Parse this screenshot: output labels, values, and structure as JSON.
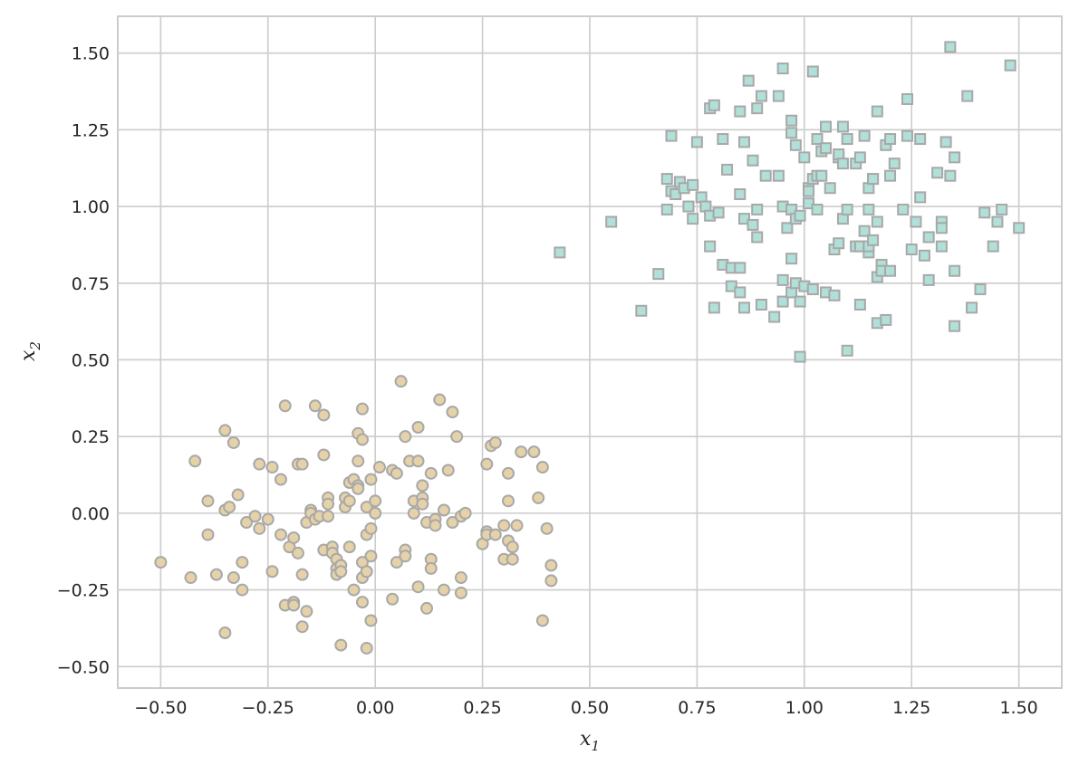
{
  "chart_data": {
    "type": "scatter",
    "xlabel": "x",
    "xlabel_sub": "1",
    "ylabel": "x",
    "ylabel_sub": "2",
    "xlim": [
      -0.6,
      1.6
    ],
    "ylim": [
      -0.57,
      1.62
    ],
    "grid": true,
    "x_ticks": [
      -0.5,
      -0.25,
      0.0,
      0.25,
      0.5,
      0.75,
      1.0,
      1.25,
      1.5
    ],
    "x_tick_labels": [
      "−0.50",
      "−0.25",
      "0.00",
      "0.25",
      "0.50",
      "0.75",
      "1.00",
      "1.25",
      "1.50"
    ],
    "y_ticks": [
      -0.5,
      -0.25,
      0.0,
      0.25,
      0.5,
      0.75,
      1.0,
      1.25,
      1.5
    ],
    "y_tick_labels": [
      "−0.50",
      "−0.25",
      "0.00",
      "0.25",
      "0.50",
      "0.75",
      "1.00",
      "1.25",
      "1.50"
    ],
    "colors": {
      "circle_fill": "#e6d2a8",
      "square_fill": "#b0e0d8",
      "marker_edge": "#a8a8a8",
      "grid": "#cccccc",
      "spine": "#cccccc",
      "text": "#262626"
    },
    "series": [
      {
        "marker": "circle",
        "points": [
          [
            -0.5,
            -0.16
          ],
          [
            -0.43,
            -0.21
          ],
          [
            -0.42,
            0.17
          ],
          [
            -0.39,
            0.04
          ],
          [
            -0.39,
            -0.07
          ],
          [
            -0.37,
            -0.2
          ],
          [
            -0.35,
            0.27
          ],
          [
            -0.35,
            0.01
          ],
          [
            -0.35,
            -0.39
          ],
          [
            -0.34,
            0.02
          ],
          [
            -0.33,
            0.23
          ],
          [
            -0.33,
            -0.21
          ],
          [
            -0.32,
            0.06
          ],
          [
            -0.31,
            -0.16
          ],
          [
            -0.31,
            -0.25
          ],
          [
            -0.3,
            -0.03
          ],
          [
            -0.28,
            -0.01
          ],
          [
            -0.27,
            0.16
          ],
          [
            -0.27,
            -0.05
          ],
          [
            -0.25,
            -0.02
          ],
          [
            -0.24,
            0.15
          ],
          [
            -0.24,
            -0.19
          ],
          [
            -0.22,
            0.11
          ],
          [
            -0.22,
            -0.07
          ],
          [
            -0.21,
            0.35
          ],
          [
            -0.21,
            -0.3
          ],
          [
            -0.2,
            -0.11
          ],
          [
            -0.19,
            -0.08
          ],
          [
            -0.19,
            -0.29
          ],
          [
            -0.19,
            -0.3
          ],
          [
            -0.18,
            0.16
          ],
          [
            -0.18,
            -0.13
          ],
          [
            -0.17,
            0.16
          ],
          [
            -0.17,
            -0.2
          ],
          [
            -0.17,
            -0.37
          ],
          [
            -0.16,
            -0.03
          ],
          [
            -0.16,
            -0.32
          ],
          [
            -0.15,
            0.01
          ],
          [
            -0.15,
            0.0
          ],
          [
            -0.14,
            -0.02
          ],
          [
            -0.14,
            0.35
          ],
          [
            -0.13,
            -0.01
          ],
          [
            -0.12,
            0.19
          ],
          [
            -0.12,
            0.32
          ],
          [
            -0.12,
            -0.12
          ],
          [
            -0.11,
            0.05
          ],
          [
            -0.11,
            -0.01
          ],
          [
            -0.11,
            0.03
          ],
          [
            -0.1,
            -0.11
          ],
          [
            -0.1,
            -0.13
          ],
          [
            -0.09,
            -0.15
          ],
          [
            -0.09,
            -0.18
          ],
          [
            -0.09,
            -0.2
          ],
          [
            -0.08,
            -0.43
          ],
          [
            -0.08,
            -0.17
          ],
          [
            -0.08,
            -0.19
          ],
          [
            -0.07,
            0.05
          ],
          [
            -0.07,
            0.02
          ],
          [
            -0.06,
            0.04
          ],
          [
            -0.06,
            0.1
          ],
          [
            -0.06,
            -0.11
          ],
          [
            -0.05,
            0.11
          ],
          [
            -0.05,
            -0.25
          ],
          [
            -0.04,
            0.09
          ],
          [
            -0.04,
            0.08
          ],
          [
            -0.04,
            0.17
          ],
          [
            -0.04,
            0.26
          ],
          [
            -0.03,
            0.24
          ],
          [
            -0.03,
            0.34
          ],
          [
            -0.03,
            -0.16
          ],
          [
            -0.03,
            -0.21
          ],
          [
            -0.03,
            -0.29
          ],
          [
            -0.02,
            0.02
          ],
          [
            -0.02,
            -0.07
          ],
          [
            -0.02,
            -0.19
          ],
          [
            -0.02,
            -0.44
          ],
          [
            -0.01,
            0.11
          ],
          [
            -0.01,
            -0.05
          ],
          [
            -0.01,
            -0.14
          ],
          [
            -0.01,
            -0.35
          ],
          [
            0.0,
            0.0
          ],
          [
            0.0,
            0.04
          ],
          [
            0.01,
            0.15
          ],
          [
            0.04,
            0.14
          ],
          [
            0.04,
            -0.28
          ],
          [
            0.05,
            0.13
          ],
          [
            0.05,
            -0.16
          ],
          [
            0.06,
            0.43
          ],
          [
            0.07,
            0.25
          ],
          [
            0.07,
            -0.12
          ],
          [
            0.07,
            -0.14
          ],
          [
            0.08,
            0.17
          ],
          [
            0.09,
            0.04
          ],
          [
            0.09,
            0.0
          ],
          [
            0.1,
            0.17
          ],
          [
            0.1,
            -0.24
          ],
          [
            0.1,
            0.28
          ],
          [
            0.11,
            0.05
          ],
          [
            0.11,
            0.03
          ],
          [
            0.11,
            0.09
          ],
          [
            0.12,
            -0.03
          ],
          [
            0.12,
            -0.31
          ],
          [
            0.13,
            0.13
          ],
          [
            0.13,
            -0.15
          ],
          [
            0.13,
            -0.18
          ],
          [
            0.14,
            -0.02
          ],
          [
            0.14,
            -0.04
          ],
          [
            0.15,
            0.37
          ],
          [
            0.16,
            -0.25
          ],
          [
            0.16,
            0.01
          ],
          [
            0.17,
            0.14
          ],
          [
            0.18,
            0.33
          ],
          [
            0.18,
            -0.03
          ],
          [
            0.19,
            0.25
          ],
          [
            0.2,
            -0.01
          ],
          [
            0.2,
            -0.21
          ],
          [
            0.2,
            -0.26
          ],
          [
            0.21,
            0.0
          ],
          [
            0.25,
            -0.1
          ],
          [
            0.26,
            0.16
          ],
          [
            0.26,
            -0.06
          ],
          [
            0.26,
            -0.07
          ],
          [
            0.27,
            0.22
          ],
          [
            0.28,
            0.23
          ],
          [
            0.28,
            -0.07
          ],
          [
            0.3,
            -0.04
          ],
          [
            0.3,
            -0.15
          ],
          [
            0.31,
            0.13
          ],
          [
            0.31,
            0.04
          ],
          [
            0.31,
            -0.09
          ],
          [
            0.32,
            -0.15
          ],
          [
            0.32,
            -0.11
          ],
          [
            0.33,
            -0.04
          ],
          [
            0.34,
            0.2
          ],
          [
            0.37,
            0.2
          ],
          [
            0.38,
            0.05
          ],
          [
            0.39,
            -0.35
          ],
          [
            0.39,
            0.15
          ],
          [
            0.4,
            -0.05
          ],
          [
            0.41,
            -0.17
          ],
          [
            0.41,
            -0.22
          ]
        ]
      },
      {
        "marker": "square",
        "points": [
          [
            0.43,
            0.85
          ],
          [
            0.55,
            0.95
          ],
          [
            0.62,
            0.66
          ],
          [
            0.66,
            0.78
          ],
          [
            0.68,
            0.99
          ],
          [
            0.68,
            1.09
          ],
          [
            0.69,
            1.05
          ],
          [
            0.69,
            1.23
          ],
          [
            0.7,
            1.04
          ],
          [
            0.71,
            1.08
          ],
          [
            0.72,
            1.06
          ],
          [
            0.73,
            1.0
          ],
          [
            0.74,
            0.96
          ],
          [
            0.74,
            1.07
          ],
          [
            0.75,
            1.21
          ],
          [
            0.76,
            1.03
          ],
          [
            0.77,
            1.0
          ],
          [
            0.78,
            0.87
          ],
          [
            0.78,
            1.32
          ],
          [
            0.78,
            0.97
          ],
          [
            0.79,
            0.67
          ],
          [
            0.79,
            1.33
          ],
          [
            0.8,
            0.98
          ],
          [
            0.81,
            1.22
          ],
          [
            0.81,
            0.81
          ],
          [
            0.82,
            1.12
          ],
          [
            0.83,
            0.74
          ],
          [
            0.83,
            0.8
          ],
          [
            0.85,
            1.04
          ],
          [
            0.85,
            0.72
          ],
          [
            0.85,
            0.8
          ],
          [
            0.85,
            1.31
          ],
          [
            0.86,
            0.96
          ],
          [
            0.86,
            1.21
          ],
          [
            0.86,
            0.67
          ],
          [
            0.87,
            1.41
          ],
          [
            0.88,
            1.15
          ],
          [
            0.88,
            0.94
          ],
          [
            0.89,
            0.99
          ],
          [
            0.89,
            1.32
          ],
          [
            0.89,
            0.9
          ],
          [
            0.9,
            0.68
          ],
          [
            0.9,
            1.36
          ],
          [
            0.91,
            1.1
          ],
          [
            0.93,
            0.64
          ],
          [
            0.94,
            1.1
          ],
          [
            0.94,
            1.36
          ],
          [
            0.95,
            1.0
          ],
          [
            0.95,
            0.76
          ],
          [
            0.95,
            0.69
          ],
          [
            0.95,
            1.45
          ],
          [
            0.96,
            0.93
          ],
          [
            0.97,
            0.83
          ],
          [
            0.97,
            0.72
          ],
          [
            0.97,
            0.99
          ],
          [
            0.97,
            1.28
          ],
          [
            0.97,
            1.24
          ],
          [
            0.98,
            0.75
          ],
          [
            0.98,
            0.96
          ],
          [
            0.98,
            1.2
          ],
          [
            0.99,
            0.69
          ],
          [
            0.99,
            0.51
          ],
          [
            0.99,
            0.97
          ],
          [
            1.0,
            1.16
          ],
          [
            1.0,
            0.74
          ],
          [
            1.01,
            1.06
          ],
          [
            1.01,
            1.01
          ],
          [
            1.01,
            1.05
          ],
          [
            1.02,
            1.09
          ],
          [
            1.02,
            0.73
          ],
          [
            1.02,
            1.44
          ],
          [
            1.03,
            1.22
          ],
          [
            1.03,
            1.1
          ],
          [
            1.03,
            0.99
          ],
          [
            1.04,
            1.1
          ],
          [
            1.04,
            1.18
          ],
          [
            1.05,
            1.19
          ],
          [
            1.05,
            0.72
          ],
          [
            1.05,
            1.26
          ],
          [
            1.06,
            1.06
          ],
          [
            1.07,
            0.71
          ],
          [
            1.07,
            0.86
          ],
          [
            1.08,
            1.16
          ],
          [
            1.08,
            0.88
          ],
          [
            1.08,
            1.17
          ],
          [
            1.09,
            1.14
          ],
          [
            1.09,
            1.26
          ],
          [
            1.09,
            0.96
          ],
          [
            1.1,
            1.22
          ],
          [
            1.1,
            0.99
          ],
          [
            1.1,
            0.53
          ],
          [
            1.12,
            0.87
          ],
          [
            1.12,
            1.14
          ],
          [
            1.13,
            0.87
          ],
          [
            1.13,
            1.16
          ],
          [
            1.13,
            0.68
          ],
          [
            1.14,
            0.92
          ],
          [
            1.14,
            1.23
          ],
          [
            1.15,
            0.85
          ],
          [
            1.15,
            0.87
          ],
          [
            1.15,
            0.99
          ],
          [
            1.15,
            1.06
          ],
          [
            1.16,
            1.09
          ],
          [
            1.16,
            1.09
          ],
          [
            1.16,
            0.89
          ],
          [
            1.17,
            0.62
          ],
          [
            1.17,
            0.95
          ],
          [
            1.17,
            0.77
          ],
          [
            1.17,
            1.31
          ],
          [
            1.18,
            0.81
          ],
          [
            1.18,
            0.79
          ],
          [
            1.19,
            0.63
          ],
          [
            1.19,
            1.2
          ],
          [
            1.2,
            0.79
          ],
          [
            1.2,
            1.1
          ],
          [
            1.2,
            1.22
          ],
          [
            1.21,
            1.14
          ],
          [
            1.23,
            0.99
          ],
          [
            1.24,
            1.23
          ],
          [
            1.24,
            1.35
          ],
          [
            1.25,
            0.86
          ],
          [
            1.26,
            0.95
          ],
          [
            1.27,
            1.03
          ],
          [
            1.27,
            1.22
          ],
          [
            1.28,
            0.84
          ],
          [
            1.29,
            0.9
          ],
          [
            1.29,
            0.76
          ],
          [
            1.31,
            1.11
          ],
          [
            1.32,
            0.95
          ],
          [
            1.32,
            0.93
          ],
          [
            1.32,
            0.87
          ],
          [
            1.33,
            1.21
          ],
          [
            1.34,
            1.1
          ],
          [
            1.34,
            1.52
          ],
          [
            1.35,
            1.16
          ],
          [
            1.35,
            0.79
          ],
          [
            1.35,
            0.61
          ],
          [
            1.38,
            1.36
          ],
          [
            1.39,
            0.67
          ],
          [
            1.41,
            0.73
          ],
          [
            1.42,
            0.98
          ],
          [
            1.44,
            0.87
          ],
          [
            1.45,
            0.95
          ],
          [
            1.46,
            0.99
          ],
          [
            1.48,
            1.46
          ],
          [
            1.5,
            0.93
          ]
        ]
      }
    ]
  }
}
